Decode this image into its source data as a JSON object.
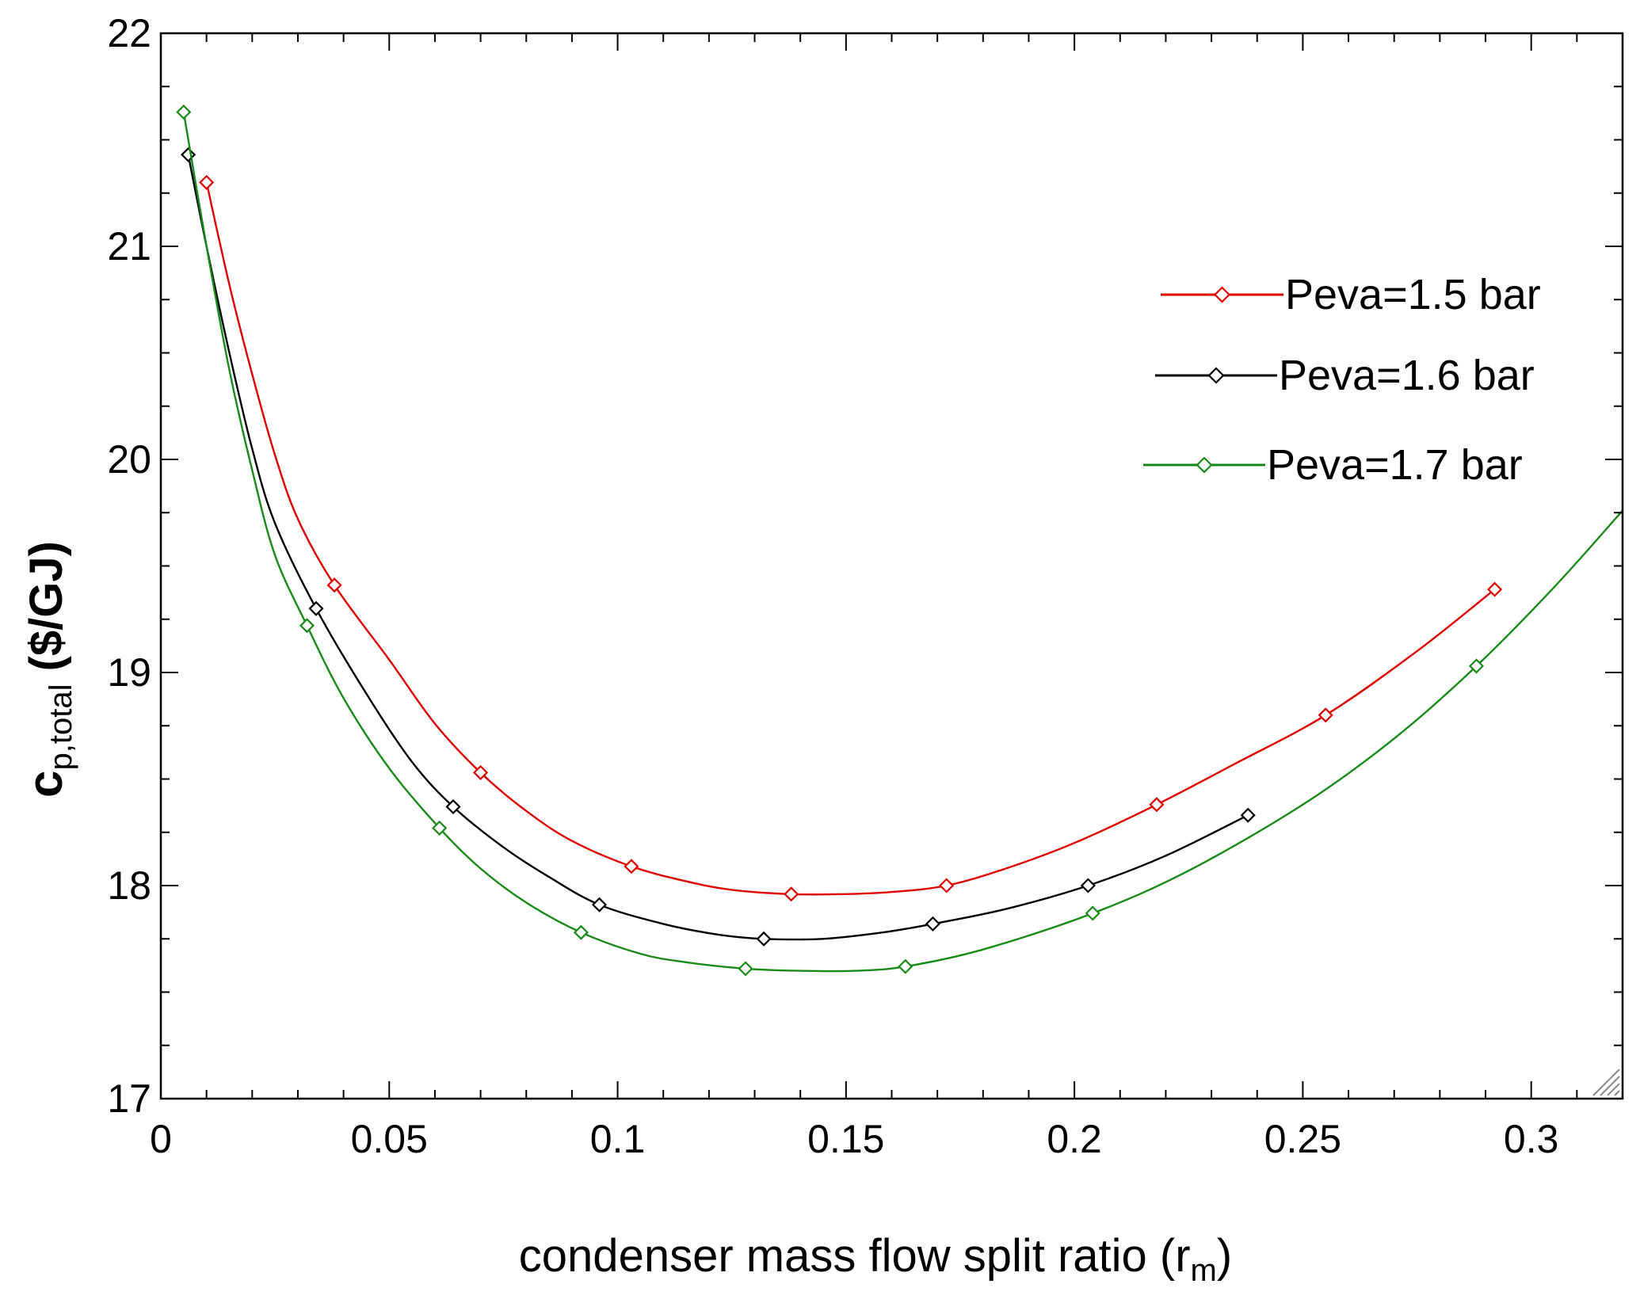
{
  "chart_data": {
    "type": "line",
    "title": "",
    "xlabel": {
      "main": "condenser mass flow split ratio (r",
      "sub": "m",
      "close": ")"
    },
    "ylabel": {
      "main": "c",
      "sub": "p,total",
      "rest": " ($/GJ)"
    },
    "xlim": [
      0,
      0.32
    ],
    "ylim": [
      17,
      22
    ],
    "x_ticks": [
      0,
      0.05,
      0.1,
      0.15,
      0.2,
      0.25,
      0.3
    ],
    "x_tick_labels": [
      "0",
      "0.05",
      "0.1",
      "0.15",
      "0.2",
      "0.25",
      "0.3"
    ],
    "y_ticks": [
      17,
      18,
      19,
      20,
      21,
      22
    ],
    "y_tick_labels": [
      "17",
      "18",
      "19",
      "20",
      "21",
      "22"
    ],
    "grid": false,
    "legend_position": "top-right",
    "series": [
      {
        "name": "Peva=1.5 bar",
        "color": "#e00000",
        "curve": {
          "x": [
            0.01,
            0.015,
            0.02,
            0.025,
            0.03,
            0.038,
            0.05,
            0.06,
            0.07,
            0.08,
            0.09,
            0.103,
            0.115,
            0.125,
            0.138,
            0.15,
            0.16,
            0.172,
            0.185,
            0.2,
            0.218,
            0.235,
            0.255,
            0.275,
            0.292
          ],
          "y": [
            21.3,
            20.82,
            20.4,
            20.02,
            19.72,
            19.41,
            19.06,
            18.76,
            18.53,
            18.35,
            18.21,
            18.09,
            18.02,
            17.98,
            17.96,
            17.96,
            17.97,
            18.0,
            18.08,
            18.2,
            18.38,
            18.57,
            18.8,
            19.1,
            19.39
          ]
        },
        "markers": {
          "x": [
            0.01,
            0.038,
            0.07,
            0.103,
            0.138,
            0.172,
            0.218,
            0.255,
            0.292
          ],
          "y": [
            21.3,
            19.41,
            18.53,
            18.09,
            17.96,
            18.0,
            18.38,
            18.8,
            19.39
          ]
        }
      },
      {
        "name": "Peva=1.6 bar",
        "color": "#000000",
        "curve": {
          "x": [
            0.006,
            0.01,
            0.015,
            0.02,
            0.025,
            0.034,
            0.045,
            0.055,
            0.064,
            0.075,
            0.085,
            0.096,
            0.11,
            0.122,
            0.132,
            0.145,
            0.158,
            0.169,
            0.185,
            0.203,
            0.22,
            0.238
          ],
          "y": [
            21.43,
            21.0,
            20.5,
            20.05,
            19.7,
            19.3,
            18.9,
            18.58,
            18.37,
            18.18,
            18.04,
            17.91,
            17.82,
            17.77,
            17.75,
            17.75,
            17.78,
            17.82,
            17.89,
            18.0,
            18.14,
            18.33
          ]
        },
        "markers": {
          "x": [
            0.006,
            0.034,
            0.064,
            0.096,
            0.132,
            0.169,
            0.203,
            0.238
          ],
          "y": [
            21.43,
            19.3,
            18.37,
            17.91,
            17.75,
            17.82,
            18.0,
            18.33
          ]
        }
      },
      {
        "name": "Peva=1.7 bar",
        "color": "#188a18",
        "curve": {
          "x": [
            0.005,
            0.01,
            0.015,
            0.02,
            0.025,
            0.032,
            0.04,
            0.05,
            0.061,
            0.07,
            0.08,
            0.092,
            0.105,
            0.115,
            0.128,
            0.14,
            0.152,
            0.163,
            0.18,
            0.204,
            0.225,
            0.25,
            0.27,
            0.288,
            0.305,
            0.32
          ],
          "y": [
            21.63,
            21.0,
            20.42,
            19.95,
            19.55,
            19.22,
            18.88,
            18.55,
            18.27,
            18.08,
            17.92,
            17.78,
            17.68,
            17.64,
            17.61,
            17.6,
            17.6,
            17.62,
            17.7,
            17.87,
            18.07,
            18.38,
            18.69,
            19.03,
            19.4,
            19.76
          ]
        },
        "markers": {
          "x": [
            0.005,
            0.032,
            0.061,
            0.092,
            0.128,
            0.163,
            0.204,
            0.288
          ],
          "y": [
            21.63,
            19.22,
            18.27,
            17.78,
            17.61,
            17.62,
            17.87,
            19.03
          ]
        }
      }
    ]
  }
}
